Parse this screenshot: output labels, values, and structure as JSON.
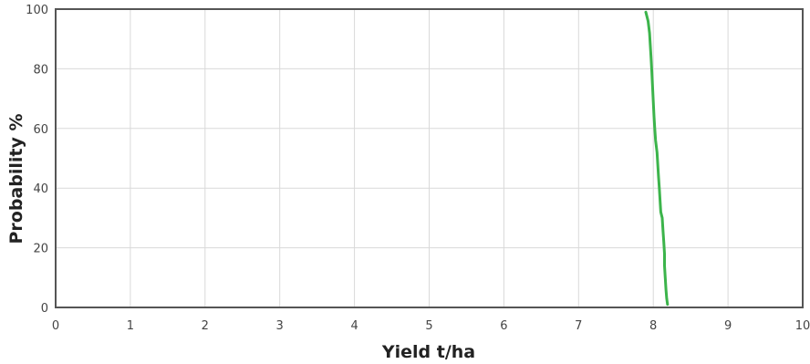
{
  "chart_data": {
    "type": "line",
    "title": "",
    "xlabel": "Yield t/ha",
    "ylabel": "Probability %",
    "xlim": [
      0,
      10
    ],
    "ylim": [
      0,
      100
    ],
    "xticks": [
      "0",
      "1",
      "2",
      "3",
      "4",
      "5",
      "6",
      "7",
      "8",
      "9",
      "10"
    ],
    "yticks": [
      "0",
      "20",
      "40",
      "60",
      "80",
      "100"
    ],
    "grid": true,
    "legend": "none",
    "series": [
      {
        "color": "#3cb44b",
        "points": [
          {
            "x": 7.9,
            "y": 99
          },
          {
            "x": 7.93,
            "y": 96
          },
          {
            "x": 7.95,
            "y": 92
          },
          {
            "x": 7.96,
            "y": 88
          },
          {
            "x": 7.97,
            "y": 84
          },
          {
            "x": 7.98,
            "y": 79
          },
          {
            "x": 7.99,
            "y": 74
          },
          {
            "x": 8.0,
            "y": 69
          },
          {
            "x": 8.01,
            "y": 64
          },
          {
            "x": 8.02,
            "y": 60
          },
          {
            "x": 8.03,
            "y": 56
          },
          {
            "x": 8.05,
            "y": 52
          },
          {
            "x": 8.06,
            "y": 48
          },
          {
            "x": 8.07,
            "y": 44
          },
          {
            "x": 8.08,
            "y": 40
          },
          {
            "x": 8.09,
            "y": 36
          },
          {
            "x": 8.1,
            "y": 32
          },
          {
            "x": 8.12,
            "y": 30
          },
          {
            "x": 8.13,
            "y": 26
          },
          {
            "x": 8.14,
            "y": 22
          },
          {
            "x": 8.15,
            "y": 18
          },
          {
            "x": 8.15,
            "y": 14
          },
          {
            "x": 8.16,
            "y": 10
          },
          {
            "x": 8.17,
            "y": 6
          },
          {
            "x": 8.18,
            "y": 3
          },
          {
            "x": 8.19,
            "y": 1
          }
        ]
      }
    ]
  }
}
